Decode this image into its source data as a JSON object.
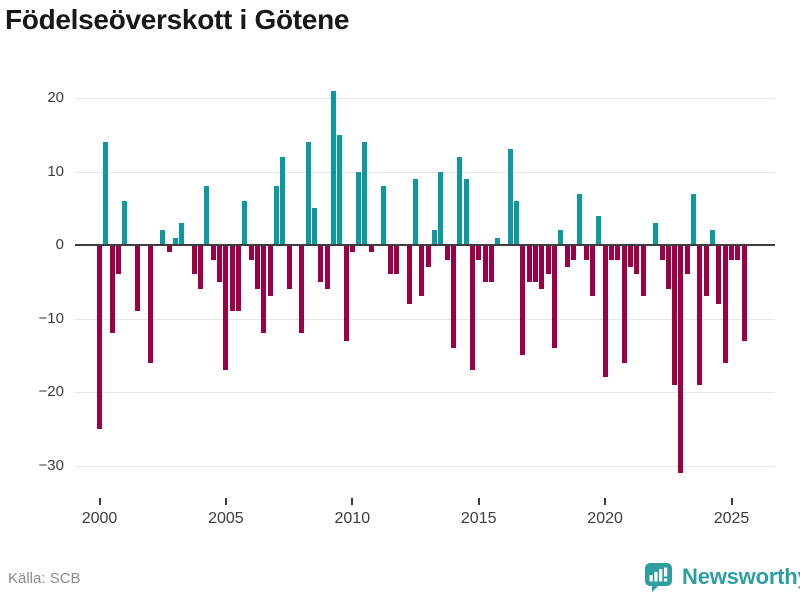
{
  "title": "Födelseöverskott i Götene",
  "source": "Källa: SCB",
  "logo": {
    "text": "Newsworthy",
    "color": "#2e9e9f"
  },
  "chart_data": {
    "type": "bar",
    "title": "Födelseöverskott i Götene",
    "frequency": "quarterly",
    "start_year": 2000,
    "quarters_per_year": 4,
    "values": [
      -25,
      14,
      -12,
      -4,
      6,
      0,
      -9,
      0,
      -16,
      0,
      2,
      -1,
      1,
      3,
      0,
      -4,
      -6,
      8,
      -2,
      -5,
      -17,
      -9,
      -9,
      6,
      -2,
      -6,
      -12,
      -7,
      8,
      12,
      -6,
      0,
      -12,
      14,
      5,
      -5,
      -6,
      21,
      15,
      -13,
      -1,
      10,
      14,
      -1,
      0,
      8,
      -4,
      -4,
      0,
      -8,
      9,
      -7,
      -3,
      2,
      10,
      -2,
      -14,
      12,
      9,
      -17,
      -2,
      -5,
      -5,
      1,
      0,
      13,
      6,
      -15,
      -5,
      -5,
      -6,
      -4,
      -14,
      2,
      -3,
      -2,
      7,
      -2,
      -7,
      4,
      -18,
      -2,
      -2,
      -16,
      -3,
      -4,
      -7,
      0,
      3,
      -2,
      -6,
      -19,
      -31,
      -4,
      7,
      -19,
      -7,
      2,
      -8,
      -16,
      -2,
      -2,
      -13
    ],
    "yticks": [
      20,
      10,
      0,
      -10,
      -20,
      -30
    ],
    "ylim": [
      -33,
      23
    ],
    "xticks": [
      "2000",
      "2005",
      "2010",
      "2015",
      "2020",
      "2025"
    ],
    "grid": true,
    "legend": false,
    "colors": {
      "positive": "#0d9a9e",
      "negative": "#9e0045"
    }
  }
}
